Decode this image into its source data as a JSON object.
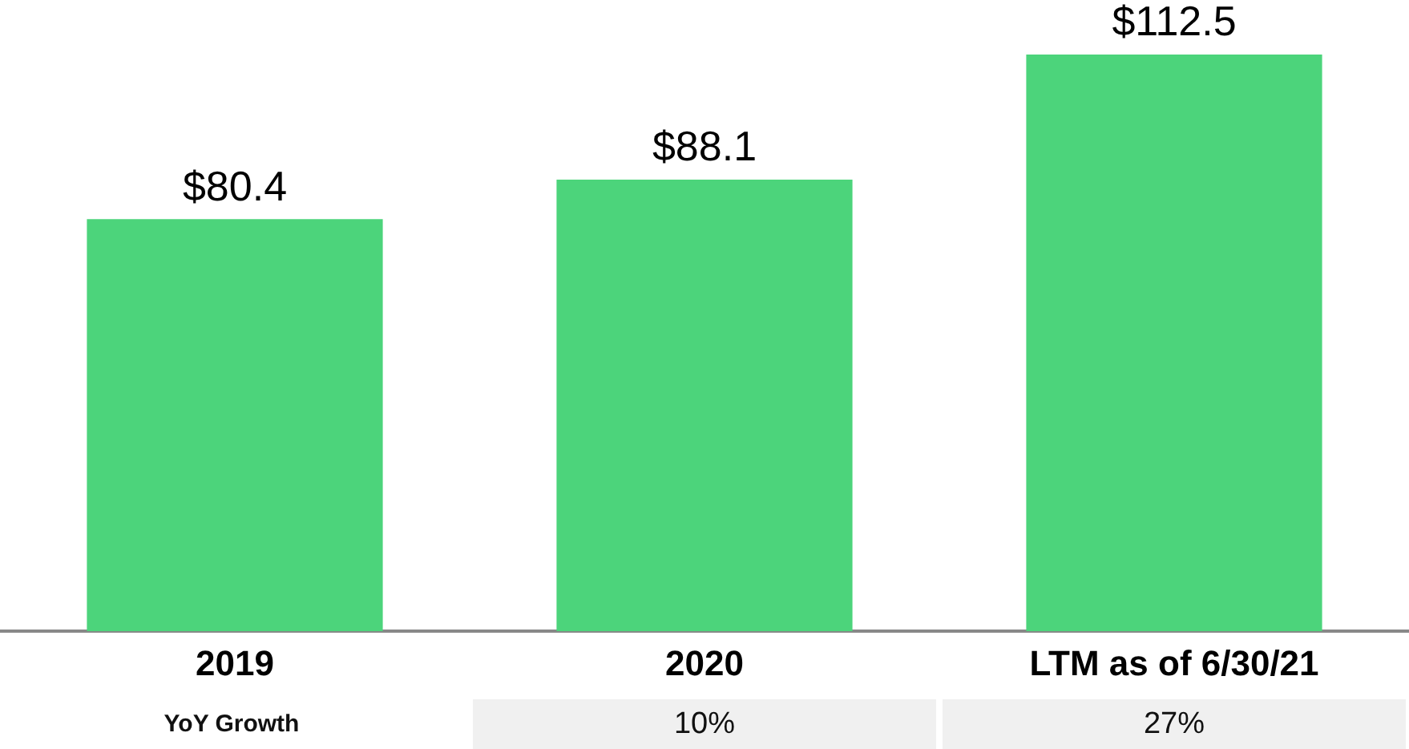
{
  "chart_data": {
    "type": "bar",
    "categories": [
      "2019",
      "2020",
      "LTM as of 6/30/21"
    ],
    "values": [
      80.4,
      88.1,
      112.5
    ],
    "color": "#4cd47b",
    "value_labels": [
      "$80.4",
      "$88.1",
      "$112.5"
    ],
    "annotations": [
      "YoY Growth",
      "10%",
      "27%"
    ],
    "grid": false,
    "legend": false
  }
}
